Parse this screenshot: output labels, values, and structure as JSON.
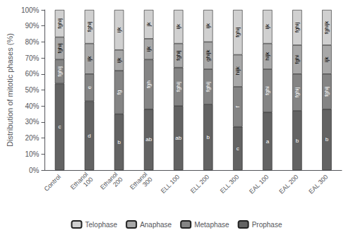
{
  "chart_data": {
    "type": "bar",
    "stacked": true,
    "grid": false,
    "legend": "bottom",
    "ylabel": "Distribution of mitotic phases (%)",
    "categories": [
      "Control",
      "Ethanol\n100",
      "Ethanol\n200",
      "Ethanol\n300",
      "ELL 100",
      "ELL 200",
      "ELL 300",
      "EAL 100",
      "EAL 200",
      "EAL 300"
    ],
    "series": [
      {
        "name": "Prophase",
        "color": "#636363",
        "values": [
          54,
          43,
          35,
          38,
          40,
          41,
          27,
          36,
          37,
          38
        ],
        "annotations": [
          "c",
          "d",
          "b",
          "ab",
          "ab",
          "b",
          "c",
          "a",
          "b",
          "b"
        ]
      },
      {
        "name": "Metaphase",
        "color": "#848484",
        "values": [
          15,
          17,
          27,
          31,
          24,
          22,
          25,
          27,
          23,
          22
        ],
        "annotations": [
          "fghij",
          "e",
          "fg",
          "fgh",
          "fghij",
          "fghij",
          "f",
          "fghi",
          "fghij",
          "fghij"
        ]
      },
      {
        "name": "Anaphase",
        "color": "#a8a8a8",
        "values": [
          14,
          19,
          13,
          13,
          15,
          17,
          20,
          16,
          18,
          18
        ],
        "annotations": [
          "fghij",
          "ijk",
          "ijk",
          "ijk",
          "fghij",
          "ghijk",
          "hijk",
          "hijk",
          "fghi",
          "ijk"
        ]
      },
      {
        "name": "Telophase",
        "color": "#d0d0d0",
        "values": [
          17,
          21,
          25,
          18,
          21,
          20,
          28,
          21,
          22,
          22
        ],
        "annotations": [
          "fghij",
          "fghij",
          "ijk",
          "jk",
          "ijk",
          "ijk",
          "fghij",
          "ijk",
          "fghij",
          "fghijk"
        ]
      }
    ],
    "ylim": [
      0,
      100
    ],
    "yticks": [
      {
        "value": 0,
        "label": "0%"
      },
      {
        "value": 10,
        "label": "10%"
      },
      {
        "value": 20,
        "label": "20%"
      },
      {
        "value": 30,
        "label": "30%"
      },
      {
        "value": 40,
        "label": "40%"
      },
      {
        "value": 50,
        "label": "50%"
      },
      {
        "value": 60,
        "label": "60%"
      },
      {
        "value": 70,
        "label": "70%"
      },
      {
        "value": 80,
        "label": "80%"
      },
      {
        "value": 90,
        "label": "90%"
      },
      {
        "value": 100,
        "label": "100%"
      }
    ]
  }
}
